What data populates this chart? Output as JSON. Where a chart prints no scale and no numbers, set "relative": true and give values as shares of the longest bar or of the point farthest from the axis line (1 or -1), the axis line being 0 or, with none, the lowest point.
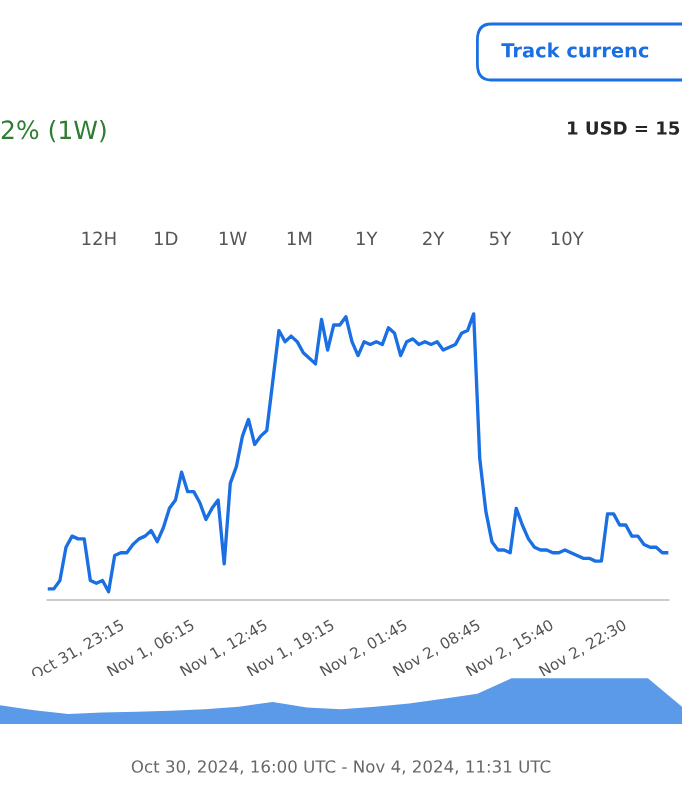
{
  "chart_data": [
    {
      "type": "line",
      "relative": true,
      "annotations": [
        "Track currenc",
        "2% (1W)",
        "1 USD = 15",
        "12H",
        "1D",
        "1W",
        "1M",
        "1Y",
        "2Y",
        "5Y",
        "10Y"
      ],
      "categories": [
        null,
        null,
        null,
        null,
        null,
        "Oct 31, 23:15",
        null,
        null,
        null,
        null,
        null,
        null,
        null,
        null,
        null,
        null,
        null,
        "Nov 1, 06:15",
        null,
        null,
        null,
        null,
        null,
        null,
        null,
        null,
        null,
        null,
        null,
        "Nov 1, 12:45",
        null,
        null,
        null,
        null,
        null,
        null,
        null,
        null,
        null,
        null,
        "Nov 1, 19:15",
        null,
        null,
        null,
        null,
        null,
        null,
        null,
        null,
        null,
        null,
        null,
        "Nov 2, 01:45",
        null,
        null,
        null,
        null,
        null,
        null,
        null,
        null,
        null,
        null,
        null,
        "Nov 2, 08:45",
        null,
        null,
        null,
        null,
        null,
        null,
        null,
        null,
        null,
        null,
        null,
        "Nov 2, 15:40",
        null,
        null,
        null,
        null,
        null,
        null,
        null,
        null,
        null,
        null,
        null,
        "Nov 2, 22:30",
        null,
        null,
        null,
        null,
        null,
        null,
        null,
        null,
        null,
        null,
        null,
        null,
        null,
        null
      ],
      "series": [
        {
          "color": "#1a6fe3",
          "values": [
            0.01,
            0.01,
            0.04,
            0.16,
            0.2,
            0.19,
            0.19,
            0.04,
            0.03,
            0.04,
            0.0,
            0.13,
            0.14,
            0.14,
            0.17,
            0.19,
            0.2,
            0.22,
            0.18,
            0.23,
            0.3,
            0.33,
            0.43,
            0.36,
            0.36,
            0.32,
            0.26,
            0.3,
            0.33,
            0.1,
            0.39,
            0.45,
            0.56,
            0.62,
            0.53,
            0.56,
            0.58,
            0.76,
            0.94,
            0.9,
            0.92,
            0.9,
            0.86,
            0.84,
            0.82,
            0.98,
            0.87,
            0.96,
            0.96,
            0.99,
            0.9,
            0.85,
            0.9,
            0.89,
            0.9,
            0.89,
            0.95,
            0.93,
            0.85,
            0.9,
            0.91,
            0.89,
            0.9,
            0.89,
            0.9,
            0.87,
            0.88,
            0.89,
            0.93,
            0.94,
            1.0,
            0.48,
            0.29,
            0.18,
            0.15,
            0.15,
            0.14,
            0.3,
            0.24,
            0.19,
            0.16,
            0.15,
            0.15,
            0.14,
            0.14,
            0.15,
            0.14,
            0.13,
            0.12,
            0.12,
            0.11,
            0.11,
            0.28,
            0.28,
            0.24,
            0.24,
            0.2,
            0.2,
            0.17,
            0.16,
            0.16,
            0.14,
            0.14
          ]
        }
      ]
    },
    {
      "type": "area",
      "relative": true,
      "annotations": [
        "Oct 30, 2024, 16:00 UTC - Nov 4, 2024, 11:31 UTC"
      ],
      "categories": [
        null,
        null,
        null,
        null,
        null,
        null,
        null,
        null,
        null,
        null,
        null,
        null,
        null,
        null,
        null,
        null,
        null,
        null,
        null,
        null,
        null
      ],
      "series": [
        {
          "color": "#5a9ae8",
          "values": [
            0.41,
            0.3,
            0.22,
            0.25,
            0.27,
            0.29,
            0.32,
            0.38,
            0.48,
            0.36,
            0.32,
            0.38,
            0.45,
            0.55,
            0.66,
            1.0,
            1.0,
            1.0,
            1.0,
            1.0,
            0.38
          ]
        }
      ]
    }
  ]
}
